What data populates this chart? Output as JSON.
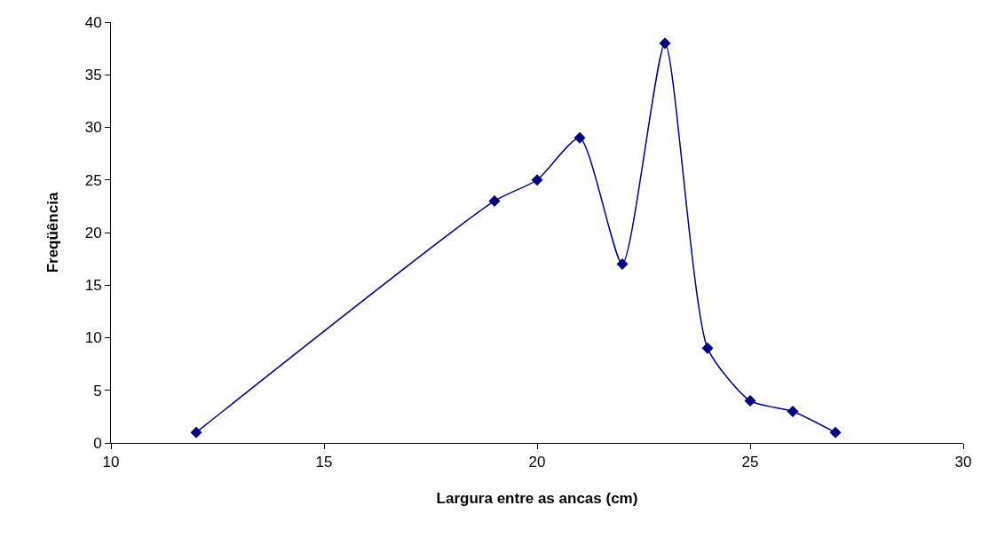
{
  "chart_data": {
    "type": "line",
    "xlabel": "Largura entre as ancas (cm)",
    "ylabel": "Freqüência",
    "x": [
      12,
      19,
      20,
      21,
      22,
      23,
      24,
      25,
      26,
      27
    ],
    "series": [
      {
        "color": "#000080",
        "values": [
          1,
          23,
          25,
          29,
          17,
          38,
          9,
          4,
          3,
          1
        ]
      }
    ],
    "xlim": [
      10,
      30
    ],
    "xticks": [
      10,
      15,
      20,
      25,
      30
    ],
    "ylim": [
      0,
      40
    ],
    "yticks": [
      0,
      5,
      10,
      15,
      20,
      25,
      30,
      35,
      40
    ],
    "grid": false,
    "marker": "diamond",
    "line_style": "solid"
  }
}
